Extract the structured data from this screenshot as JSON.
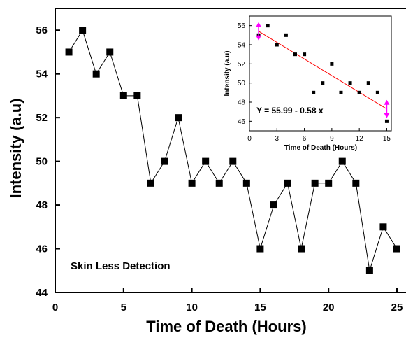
{
  "chart_data": [
    {
      "type": "line",
      "xlabel": "Time of Death (Hours)",
      "ylabel": "Intensity (a.u)",
      "xlim": [
        0,
        25
      ],
      "ylim": [
        44,
        57
      ],
      "xticks": [
        0,
        5,
        10,
        15,
        20,
        25
      ],
      "yticks": [
        44,
        46,
        48,
        50,
        52,
        54,
        56
      ],
      "annotation": "Skin Less Detection",
      "grid": false,
      "series": [
        {
          "marker": "square",
          "color": "#000000",
          "x": [
            1,
            2,
            3,
            4,
            5,
            6,
            7,
            8,
            9,
            10,
            11,
            12,
            13,
            14,
            15,
            16,
            17,
            18,
            19,
            20,
            21,
            22,
            23,
            24,
            25
          ],
          "y": [
            55,
            56,
            54,
            55,
            53,
            53,
            49,
            50,
            52,
            49,
            50,
            49,
            50,
            49,
            46,
            48,
            49,
            46,
            49,
            49,
            50,
            49,
            45,
            47,
            46
          ]
        }
      ]
    },
    {
      "type": "scatter",
      "xlabel": "Time of Death (Hours)",
      "ylabel": "Intensity (a.u)",
      "xlim": [
        0,
        15.5
      ],
      "ylim": [
        45,
        57
      ],
      "xticks": [
        0,
        3,
        6,
        9,
        12,
        15
      ],
      "yticks": [
        46,
        48,
        50,
        52,
        54,
        56
      ],
      "equation": "Y = 55.99 - 0.58 x",
      "fit": {
        "slope": -0.58,
        "intercept": 55.99,
        "x_range": [
          1,
          15
        ],
        "color": "#ff0000"
      },
      "error_arrows": {
        "x": [
          1,
          15
        ],
        "color": "#ff00ff"
      },
      "series": [
        {
          "marker": "square",
          "color": "#000000",
          "x": [
            1,
            2,
            3,
            4,
            5,
            6,
            7,
            8,
            9,
            10,
            11,
            12,
            13,
            14,
            15
          ],
          "y": [
            55,
            56,
            54,
            55,
            53,
            53,
            49,
            50,
            52,
            49,
            50,
            49,
            50,
            49,
            46
          ]
        }
      ]
    }
  ]
}
